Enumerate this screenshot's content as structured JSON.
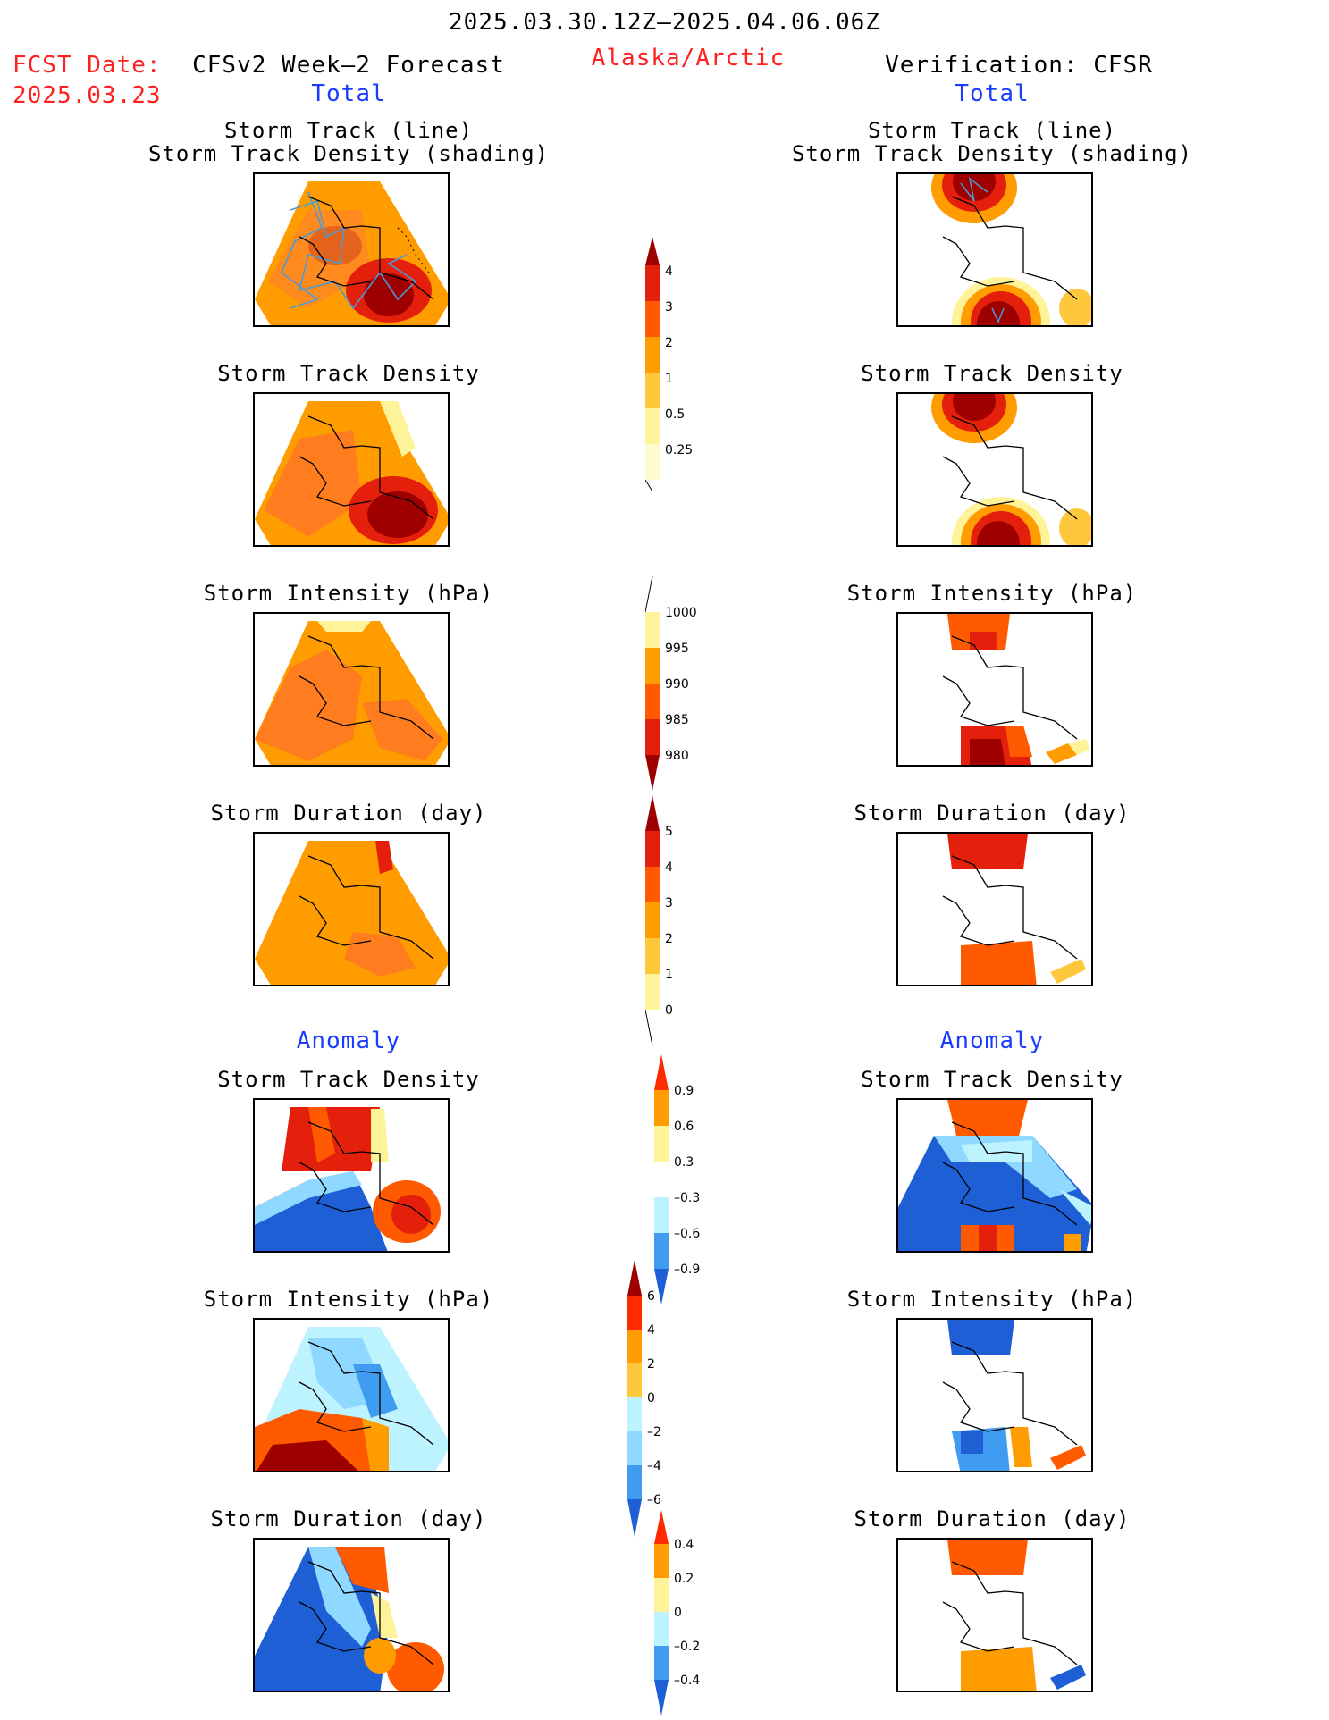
{
  "header": {
    "period": "2025.03.30.12Z–2025.04.06.06Z",
    "fcst_label": "FCST Date:",
    "fcst_date": "2025.03.23",
    "left_title": "CFSv2 Week–2 Forecast",
    "region": "Alaska/Arctic",
    "right_title": "Verification: CFSR"
  },
  "sections": {
    "total": "Total",
    "anomaly": "Anomaly"
  },
  "panel_titles": {
    "track_line": "Storm Track (line)",
    "track_density_shading": "Storm Track Density (shading)",
    "track_density": "Storm Track Density",
    "intensity": "Storm Intensity (hPa)",
    "duration": "Storm Duration (day)"
  },
  "colorbars": {
    "density_total": [
      "4",
      "3",
      "2",
      "1",
      "0.5",
      "0.25"
    ],
    "intensity_total": [
      "1000",
      "995",
      "990",
      "985",
      "980"
    ],
    "duration_total": [
      "5",
      "4",
      "3",
      "2",
      "1",
      "0"
    ],
    "density_anom": [
      "0.9",
      "0.6",
      "0.3",
      "–0.3",
      "–0.6",
      "–0.9"
    ],
    "intensity_anom": [
      "6",
      "4",
      "2",
      "0",
      "–2",
      "–4",
      "–6"
    ],
    "duration_anom": [
      "0.4",
      "0.2",
      "0",
      "–0.2",
      "–0.4"
    ]
  },
  "colors": {
    "title_red": "#ff2020",
    "section_blue": "#1a3cff",
    "dark_red": "#9e0000",
    "red": "#e4200c",
    "orange_red": "#ff5a00",
    "orange": "#ff9d00",
    "light_orange": "#ffc83c",
    "yellow": "#fff39a",
    "pale_blue": "#bdf2ff",
    "light_blue": "#8fd8ff",
    "mid_blue": "#3f9cf0",
    "blue": "#1f5fd6",
    "track_line": "#4a9bd6"
  }
}
